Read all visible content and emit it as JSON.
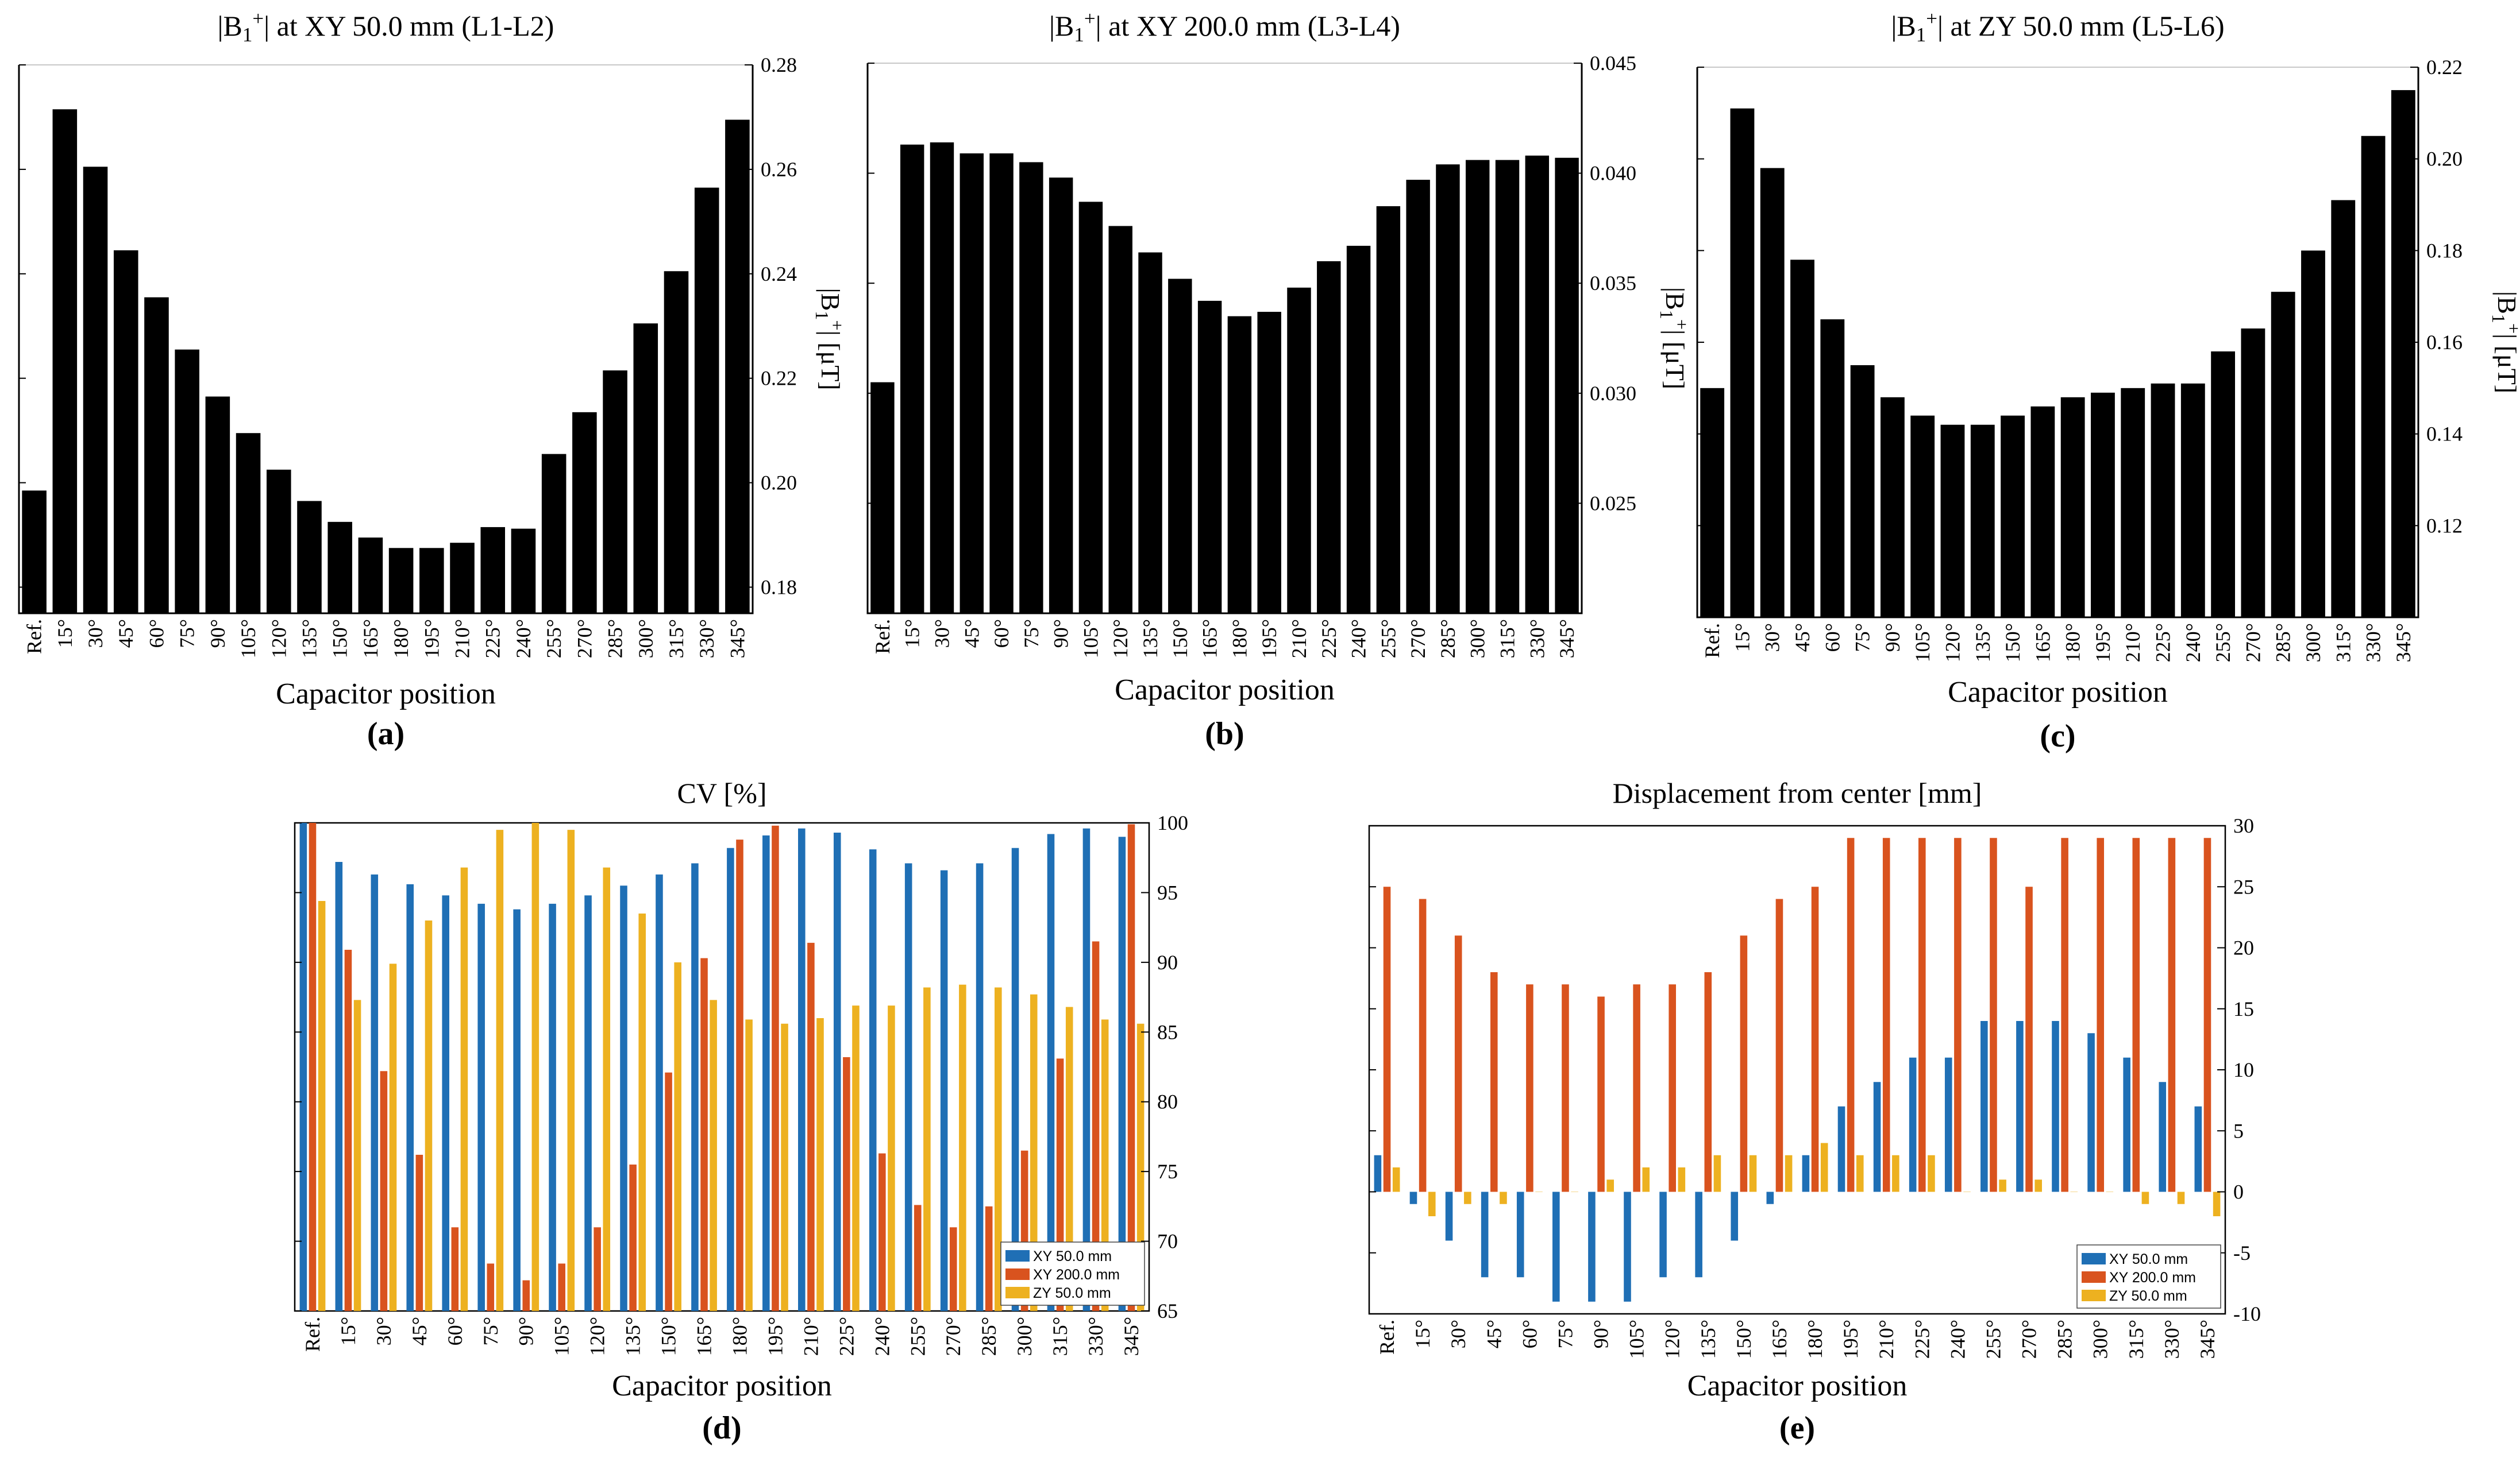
{
  "chart_data": [
    {
      "type": "bar",
      "title": "|B1+| at XY 50.0 mm (L1-L2)",
      "panel_label": "(a)",
      "xlabel": "Capacitor position",
      "ylabel": "|B1+| [μT]",
      "ylim": [
        0.175,
        0.28
      ],
      "yticks": [
        0.18,
        0.2,
        0.22,
        0.24,
        0.26,
        0.28
      ],
      "ytick_labels": [
        "0.18",
        "0.20",
        "0.22",
        "0.24",
        "0.26",
        "0.28"
      ],
      "categories": [
        "Ref.",
        "15°",
        "30°",
        "45°",
        "60°",
        "75°",
        "90°",
        "105°",
        "120°",
        "135°",
        "150°",
        "165°",
        "180°",
        "195°",
        "210°",
        "225°",
        "240°",
        "255°",
        "270°",
        "285°",
        "300°",
        "315°",
        "330°",
        "345°"
      ],
      "values": [
        0.1985,
        0.2715,
        0.2605,
        0.2445,
        0.2355,
        0.2255,
        0.2165,
        0.2095,
        0.2025,
        0.1965,
        0.1925,
        0.1895,
        0.1875,
        0.1875,
        0.1885,
        0.1915,
        0.1912,
        0.2055,
        0.2135,
        0.2215,
        0.2305,
        0.2405,
        0.2565,
        0.2695
      ],
      "grid": false
    },
    {
      "type": "bar",
      "title": "|B1+| at XY 200.0 mm (L3-L4)",
      "panel_label": "(b)",
      "xlabel": "Capacitor position",
      "ylabel": "|B1+| [μT]",
      "ylim": [
        0.02,
        0.045
      ],
      "yticks": [
        0.025,
        0.03,
        0.035,
        0.04,
        0.045
      ],
      "ytick_labels": [
        "0.025",
        "0.030",
        "0.035",
        "0.040",
        "0.045"
      ],
      "categories": [
        "Ref.",
        "15°",
        "30°",
        "45°",
        "60°",
        "75°",
        "90°",
        "105°",
        "120°",
        "135°",
        "150°",
        "165°",
        "180°",
        "195°",
        "210°",
        "225°",
        "240°",
        "255°",
        "270°",
        "285°",
        "300°",
        "315°",
        "330°",
        "345°"
      ],
      "values": [
        0.0305,
        0.0413,
        0.0414,
        0.0409,
        0.0409,
        0.0405,
        0.0398,
        0.0387,
        0.0376,
        0.0364,
        0.0352,
        0.0342,
        0.0335,
        0.0337,
        0.0348,
        0.036,
        0.0367,
        0.0385,
        0.0397,
        0.0404,
        0.0406,
        0.0406,
        0.0408,
        0.0407
      ],
      "grid": false
    },
    {
      "type": "bar",
      "title": "|B1+| at ZY 50.0 mm (L5-L6)",
      "panel_label": "(c)",
      "xlabel": "Capacitor position",
      "ylabel": "|B1+| [μT]",
      "ylim": [
        0.1,
        0.22
      ],
      "yticks": [
        0.12,
        0.14,
        0.16,
        0.18,
        0.2,
        0.22
      ],
      "ytick_labels": [
        "0.12",
        "0.14",
        "0.16",
        "0.18",
        "0.20",
        "0.22"
      ],
      "categories": [
        "Ref.",
        "15°",
        "30°",
        "45°",
        "60°",
        "75°",
        "90°",
        "105°",
        "120°",
        "135°",
        "150°",
        "165°",
        "180°",
        "195°",
        "210°",
        "225°",
        "240°",
        "255°",
        "270°",
        "285°",
        "300°",
        "315°",
        "330°",
        "345°"
      ],
      "values": [
        0.15,
        0.211,
        0.198,
        0.178,
        0.165,
        0.155,
        0.148,
        0.144,
        0.142,
        0.142,
        0.144,
        0.146,
        0.148,
        0.149,
        0.15,
        0.151,
        0.151,
        0.158,
        0.163,
        0.171,
        0.18,
        0.191,
        0.205,
        0.215
      ],
      "grid": false
    },
    {
      "type": "bar",
      "title": "CV [%]",
      "panel_label": "(d)",
      "xlabel": "Capacitor position",
      "ylabel": "",
      "ylim": [
        65,
        100
      ],
      "yticks": [
        65,
        70,
        75,
        80,
        85,
        90,
        95,
        100
      ],
      "ytick_labels": [
        "65",
        "70",
        "75",
        "80",
        "85",
        "90",
        "95",
        "100"
      ],
      "legend_position": "bottom-right",
      "categories": [
        "Ref.",
        "15°",
        "30°",
        "45°",
        "60°",
        "75°",
        "90°",
        "105°",
        "120°",
        "135°",
        "150°",
        "165°",
        "180°",
        "195°",
        "210°",
        "225°",
        "240°",
        "255°",
        "270°",
        "285°",
        "300°",
        "315°",
        "330°",
        "345°"
      ],
      "series": [
        {
          "name": "XY 50.0 mm",
          "color": "#1f6fb5",
          "values": [
            100,
            97.2,
            96.3,
            95.6,
            94.8,
            94.2,
            93.8,
            94.2,
            94.8,
            95.5,
            96.3,
            97.1,
            98.2,
            99.1,
            99.6,
            99.3,
            98.1,
            97.1,
            96.6,
            97.1,
            98.2,
            99.2,
            99.6,
            99.0
          ]
        },
        {
          "name": "XY 200.0 mm",
          "color": "#d9531e",
          "values": [
            100,
            90.9,
            82.2,
            76.2,
            71.0,
            68.4,
            67.2,
            68.4,
            71.0,
            75.5,
            82.1,
            90.3,
            98.8,
            99.8,
            91.4,
            83.2,
            76.3,
            72.6,
            71.0,
            72.5,
            76.5,
            83.1,
            91.5,
            99.9
          ]
        },
        {
          "name": "ZY 50.0 mm",
          "color": "#edb120",
          "values": [
            94.4,
            87.3,
            89.9,
            93.0,
            96.8,
            99.5,
            100,
            99.5,
            96.8,
            93.5,
            90.0,
            87.3,
            85.9,
            85.6,
            86.0,
            86.9,
            86.9,
            88.2,
            88.4,
            88.2,
            87.7,
            86.8,
            85.9,
            85.6
          ]
        }
      ],
      "legend": [
        "XY 50.0 mm",
        "XY 200.0 mm",
        "ZY 50.0 mm"
      ]
    },
    {
      "type": "bar",
      "title": "Displacement from center [mm]",
      "panel_label": "(e)",
      "xlabel": "Capacitor position",
      "ylabel": "",
      "ylim": [
        -10,
        30
      ],
      "yticks": [
        -10,
        -5,
        0,
        5,
        10,
        15,
        20,
        25,
        30
      ],
      "ytick_labels": [
        "-10",
        "-5",
        "0",
        "5",
        "10",
        "15",
        "20",
        "25",
        "30"
      ],
      "legend_position": "bottom-right",
      "categories": [
        "Ref.",
        "15°",
        "30°",
        "45°",
        "60°",
        "75°",
        "90°",
        "105°",
        "120°",
        "135°",
        "150°",
        "165°",
        "180°",
        "195°",
        "210°",
        "225°",
        "240°",
        "255°",
        "270°",
        "285°",
        "300°",
        "315°",
        "330°",
        "345°"
      ],
      "series": [
        {
          "name": "XY 50.0 mm",
          "color": "#1f6fb5",
          "values": [
            3,
            -1,
            -4,
            -7,
            -7,
            -9,
            -9,
            -9,
            -7,
            -7,
            -4,
            -1,
            3,
            7,
            9,
            11,
            11,
            14,
            14,
            14,
            13,
            11,
            9,
            7
          ]
        },
        {
          "name": "XY 200.0 mm",
          "color": "#d9531e",
          "values": [
            25,
            24,
            21,
            18,
            17,
            17,
            16,
            17,
            17,
            18,
            21,
            24,
            25,
            29,
            29,
            29,
            29,
            29,
            25,
            29,
            29,
            29,
            29,
            29
          ]
        },
        {
          "name": "ZY 50.0 mm",
          "color": "#edb120",
          "values": [
            2,
            -2,
            -1,
            -1,
            0,
            0,
            1,
            2,
            2,
            3,
            3,
            3,
            4,
            3,
            3,
            3,
            0,
            1,
            1,
            0,
            0,
            -1,
            -1,
            -2
          ]
        }
      ],
      "legend": [
        "XY 50.0 mm",
        "XY 200.0 mm",
        "ZY 50.0 mm"
      ]
    }
  ]
}
